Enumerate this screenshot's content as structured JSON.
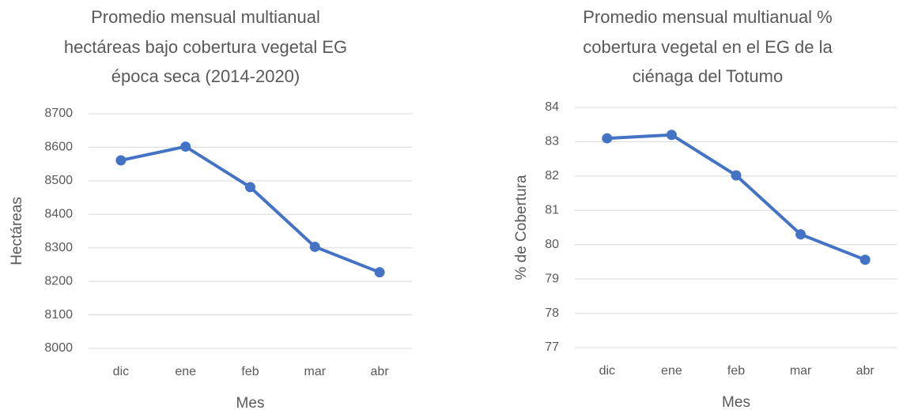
{
  "chart_data": [
    {
      "type": "line",
      "title": [
        "Promedio mensual multianual",
        "hectáreas bajo cobertura vegetal EG",
        "época seca (2014-2020)"
      ],
      "x_label": "Mes",
      "y_label": "Hectáreas",
      "categories": [
        "dic",
        "ene",
        "feb",
        "mar",
        "abr"
      ],
      "series": [
        {
          "name": null,
          "color": "#4472c4",
          "values": [
            8561,
            8602,
            8481,
            8303,
            8227
          ]
        }
      ],
      "ylim": [
        8000,
        8700
      ],
      "yticks": [
        8000,
        8100,
        8200,
        8300,
        8400,
        8500,
        8600,
        8700
      ],
      "grid": true
    },
    {
      "type": "line",
      "title": [
        "Promedio mensual multianual %",
        "cobertura vegetal en el EG de la",
        "ciénaga del Totumo"
      ],
      "x_label": "Mes",
      "y_label": "% de Cobertura",
      "categories": [
        "dic",
        "ene",
        "feb",
        "mar",
        "abr"
      ],
      "series": [
        {
          "name": null,
          "color": "#4472c4",
          "values": [
            83.1,
            83.2,
            82.02,
            80.3,
            79.56
          ]
        }
      ],
      "ylim": [
        77,
        84
      ],
      "yticks": [
        77,
        78,
        79,
        80,
        81,
        82,
        83,
        84
      ],
      "grid": true
    }
  ]
}
